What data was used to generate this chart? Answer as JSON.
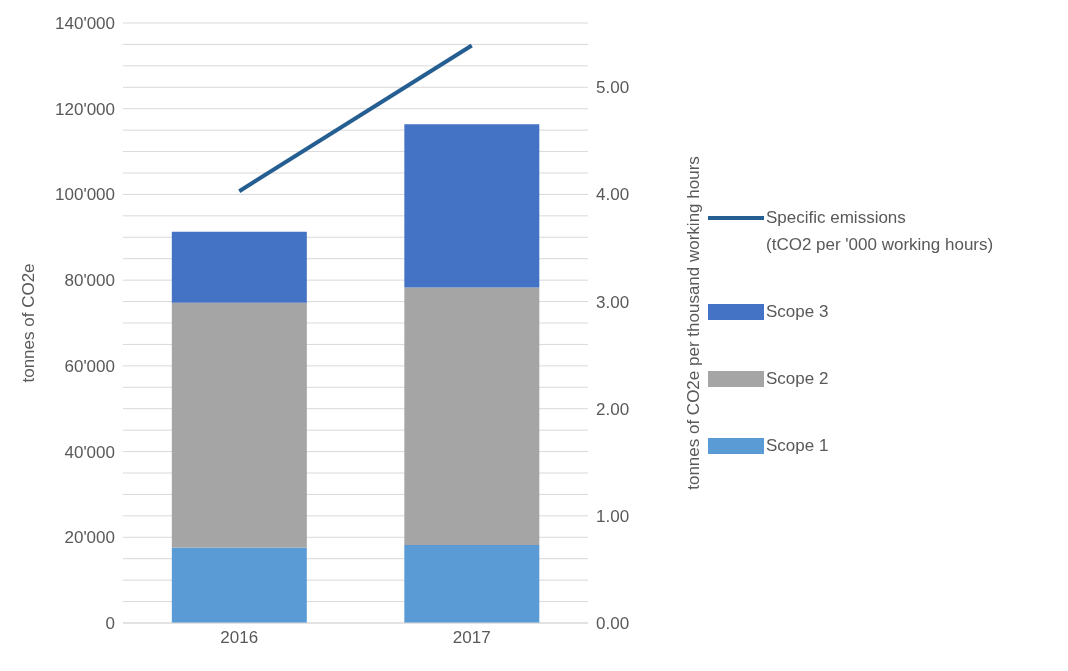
{
  "chart_data": {
    "type": "bar",
    "stacked": true,
    "categories": [
      "2016",
      "2017"
    ],
    "series": [
      {
        "name": "Scope 1",
        "color": "#5b9bd5",
        "values": [
          17600,
          18200
        ]
      },
      {
        "name": "Scope 2",
        "color": "#a5a5a5",
        "values": [
          57100,
          60100
        ]
      },
      {
        "name": "Scope 3",
        "color": "#4472c4",
        "values": [
          16600,
          38100
        ]
      },
      {
        "name": "Specific emissions\n(tCO2 per '000 working hours)",
        "type": "line",
        "axis": "y2",
        "color": "#255e91",
        "values": [
          4.03,
          5.39
        ]
      }
    ],
    "ylabel": "tonnes of CO2e",
    "y2label": "tonnes of CO2e per thousand working hours",
    "ylim": [
      0,
      140000
    ],
    "yticks": [
      {
        "value": 0,
        "label": "0"
      },
      {
        "value": 5000,
        "label": null
      },
      {
        "value": 10000,
        "label": null
      },
      {
        "value": 15000,
        "label": null
      },
      {
        "value": 20000,
        "label": "20'000"
      },
      {
        "value": 25000,
        "label": null
      },
      {
        "value": 30000,
        "label": null
      },
      {
        "value": 35000,
        "label": null
      },
      {
        "value": 40000,
        "label": "40'000"
      },
      {
        "value": 45000,
        "label": null
      },
      {
        "value": 50000,
        "label": null
      },
      {
        "value": 55000,
        "label": null
      },
      {
        "value": 60000,
        "label": "60'000"
      },
      {
        "value": 65000,
        "label": null
      },
      {
        "value": 70000,
        "label": null
      },
      {
        "value": 75000,
        "label": null
      },
      {
        "value": 80000,
        "label": "80'000"
      },
      {
        "value": 85000,
        "label": null
      },
      {
        "value": 90000,
        "label": null
      },
      {
        "value": 95000,
        "label": null
      },
      {
        "value": 100000,
        "label": "100'000"
      },
      {
        "value": 105000,
        "label": null
      },
      {
        "value": 110000,
        "label": null
      },
      {
        "value": 115000,
        "label": null
      },
      {
        "value": 120000,
        "label": "120'000"
      },
      {
        "value": 125000,
        "label": null
      },
      {
        "value": 130000,
        "label": null
      },
      {
        "value": 135000,
        "label": null
      },
      {
        "value": 140000,
        "label": "140'000"
      }
    ],
    "y2lim": [
      0,
      5.6
    ],
    "y2ticks": [
      {
        "value": 0,
        "label": "0.00"
      },
      {
        "value": 1,
        "label": "1.00"
      },
      {
        "value": 2,
        "label": "2.00"
      },
      {
        "value": 3,
        "label": "3.00"
      },
      {
        "value": 4,
        "label": "4.00"
      },
      {
        "value": 5,
        "label": "5.00"
      }
    ],
    "grid": "y",
    "legend": "right",
    "marker": "none",
    "line_style": "solid"
  }
}
